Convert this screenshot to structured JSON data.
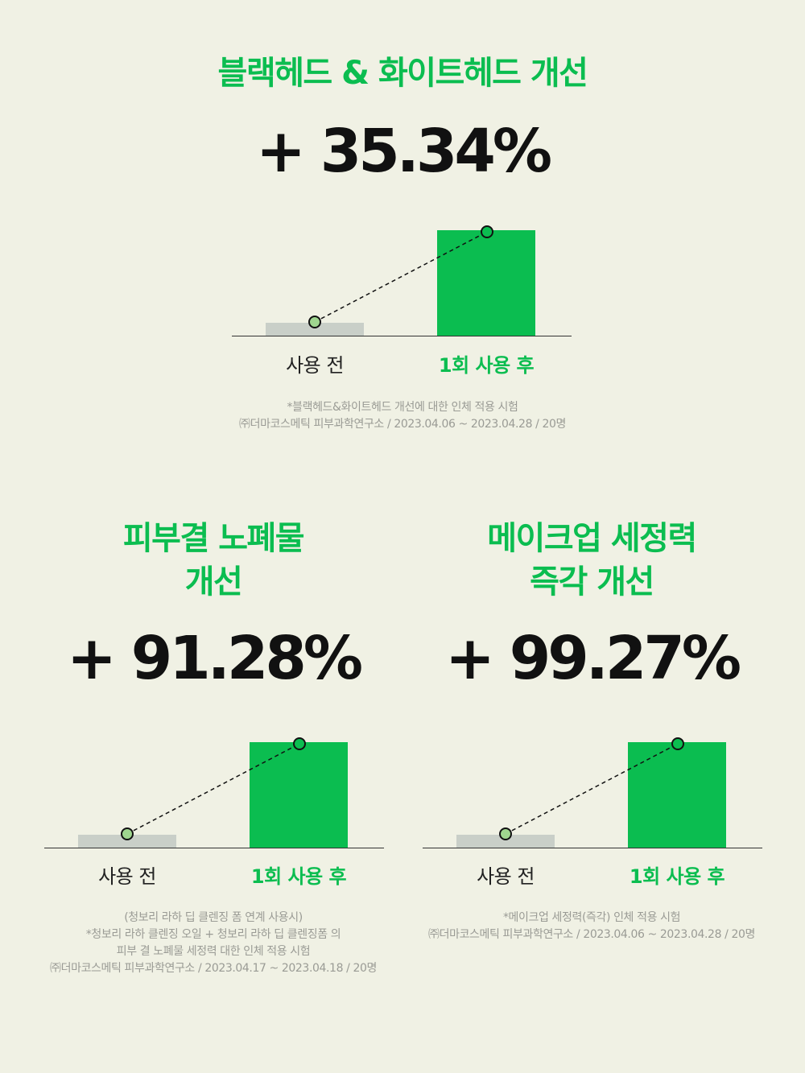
{
  "colors": {
    "background": "#f0f1e4",
    "accent_green": "#0bbd50",
    "before_bar": "#c9cfc8",
    "text_dark": "#111111",
    "footnote_gray": "#9a9b95"
  },
  "section1": {
    "title": "블랙헤드 & 화이트헤드 개선",
    "percent": "+ 35.34%",
    "before_label": "사용 전",
    "after_label": "1회 사용 후",
    "footnote_line1": "*블랙헤드&화이트헤드 개선에 대한 인체 적용 시험",
    "footnote_line2": "㈜더마코스메틱 피부과학연구소 / 2023.04.06 ~ 2023.04.28 / 20명"
  },
  "section2": {
    "title_line1": "피부결 노폐물",
    "title_line2": "개선",
    "percent": "+ 91.28%",
    "before_label": "사용 전",
    "after_label": "1회 사용 후",
    "footnote_line1": "(청보리 라하 딥 클렌징 폼 연계 사용시)",
    "footnote_line2": "*청보리 라하 클렌징 오일 + 청보리 라하 딥 클렌징폼 의",
    "footnote_line3": "피부 결 노폐물 세정력 대한 인체 적용 시험",
    "footnote_line4": "㈜더마코스메틱 피부과학연구소 / 2023.04.17 ~ 2023.04.18 / 20명"
  },
  "section3": {
    "title_line1": "메이크업 세정력",
    "title_line2": "즉각 개선",
    "percent": "+ 99.27%",
    "before_label": "사용 전",
    "after_label": "1회 사용 후",
    "footnote_line1": "*메이크업 세정력(즉각) 인체 적용 시험",
    "footnote_line2": "㈜더마코스메틱 피부과학연구소 / 2023.04.06 ~ 2023.04.28 / 20명"
  }
}
